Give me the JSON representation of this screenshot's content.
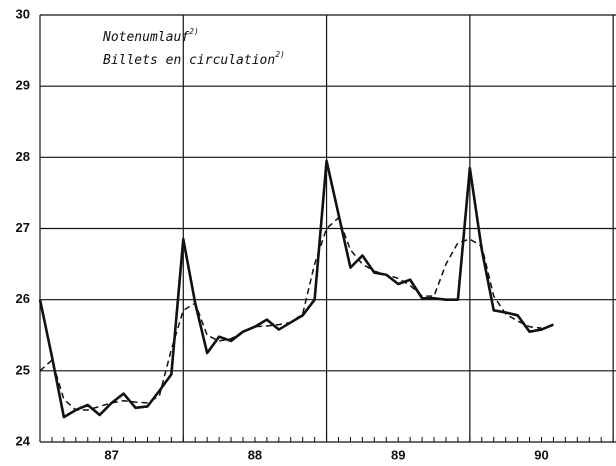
{
  "chart_data": {
    "type": "line",
    "annotations": [
      "Notenumlauf",
      "Billets en circulation"
    ],
    "annotation_marks": [
      "2)",
      "2)"
    ],
    "x_labels": [
      "87",
      "88",
      "89",
      "90"
    ],
    "x": [
      0,
      1,
      2,
      3,
      4,
      5,
      6,
      7,
      8,
      9,
      10,
      11,
      12,
      13,
      14,
      15,
      16,
      17,
      18,
      19,
      20,
      21,
      22,
      23,
      24,
      25,
      26,
      27,
      28,
      29,
      30,
      31,
      32,
      33,
      34,
      35,
      36,
      37,
      38,
      39,
      40,
      41,
      42,
      43
    ],
    "series": [
      {
        "color": "#111111",
        "style": "solid",
        "values": [
          26.0,
          25.2,
          24.35,
          24.45,
          24.52,
          24.38,
          24.55,
          24.68,
          24.48,
          24.5,
          24.72,
          24.95,
          26.85,
          25.95,
          25.25,
          25.48,
          25.42,
          25.55,
          25.62,
          25.72,
          25.58,
          25.68,
          25.78,
          26.0,
          27.95,
          27.2,
          26.45,
          26.62,
          26.38,
          26.35,
          26.22,
          26.28,
          26.02,
          26.02,
          26.0,
          26.0,
          27.85,
          26.7,
          25.85,
          25.82,
          25.78,
          25.55,
          25.58,
          25.65
        ]
      },
      {
        "color": "#111111",
        "style": "dashed",
        "values": [
          25.0,
          25.15,
          24.6,
          24.45,
          24.45,
          24.5,
          24.55,
          24.58,
          24.56,
          24.55,
          24.65,
          25.3,
          25.85,
          25.95,
          25.5,
          25.42,
          25.45,
          25.55,
          25.62,
          25.63,
          25.65,
          25.68,
          25.8,
          26.5,
          27.0,
          27.15,
          26.7,
          26.5,
          26.4,
          26.35,
          26.3,
          26.2,
          26.05,
          26.05,
          26.5,
          26.8,
          26.85,
          26.75,
          26.05,
          25.8,
          25.7,
          25.62,
          25.6,
          null
        ]
      }
    ],
    "xlim": [
      0,
      48.24
    ],
    "xticks": [
      0,
      12,
      24,
      36,
      48
    ],
    "ylim": [
      24,
      30
    ],
    "yticks": [
      24,
      25,
      26,
      27,
      28,
      29,
      30
    ],
    "grid": true
  }
}
